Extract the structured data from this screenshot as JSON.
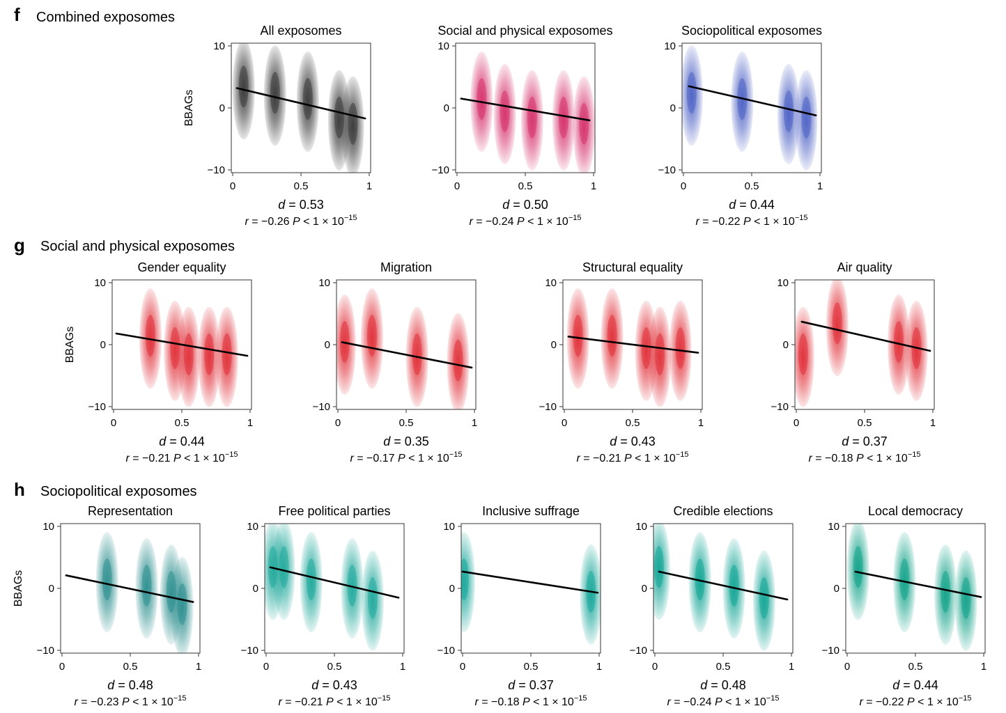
{
  "sections": [
    {
      "letter": "f",
      "title": "Combined exposomes"
    },
    {
      "letter": "g",
      "title": "Social and physical exposomes"
    },
    {
      "letter": "h",
      "title": "Sociopolitical exposomes"
    }
  ],
  "chart_data": [
    {
      "type": "scatter",
      "section": "f",
      "title": "All exposomes",
      "ylabel": "BBAGs",
      "palette": "#3a3a3a",
      "xlim": [
        0,
        1
      ],
      "ylim": [
        -10,
        10
      ],
      "x_ticks": [
        "0",
        "0.5",
        "1"
      ],
      "y_ticks": [
        "10",
        "0",
        "−10"
      ],
      "regression": {
        "x": [
          0.03,
          0.97
        ],
        "y": [
          3.2,
          -1.7
        ]
      },
      "density_clusters": [
        {
          "x": 0.08,
          "y": 3
        },
        {
          "x": 0.31,
          "y": 2
        },
        {
          "x": 0.55,
          "y": 1
        },
        {
          "x": 0.78,
          "y": -2
        },
        {
          "x": 0.88,
          "y": -3
        }
      ],
      "stats": {
        "d_label": "d",
        "d_value": "= 0.53",
        "r_label": "r",
        "r_value": "= −0.26",
        "p_label": "P",
        "p_value": "< 1 × 10",
        "p_exp": "−15"
      }
    },
    {
      "type": "scatter",
      "section": "f",
      "title": "Social and physical exposomes",
      "ylabel": "",
      "palette": "#d6336c",
      "xlim": [
        0,
        1
      ],
      "ylim": [
        -10,
        10
      ],
      "x_ticks": [
        "0",
        "0.5",
        "1"
      ],
      "y_ticks": [
        "10",
        "0",
        "−10"
      ],
      "regression": {
        "x": [
          0.03,
          0.97
        ],
        "y": [
          1.5,
          -2.0
        ]
      },
      "density_clusters": [
        {
          "x": 0.18,
          "y": 1
        },
        {
          "x": 0.35,
          "y": -1
        },
        {
          "x": 0.55,
          "y": -2
        },
        {
          "x": 0.78,
          "y": -2
        },
        {
          "x": 0.93,
          "y": -3
        }
      ],
      "stats": {
        "d_label": "d",
        "d_value": "= 0.50",
        "r_label": "r",
        "r_value": "= −0.24",
        "p_label": "P",
        "p_value": "< 1 × 10",
        "p_exp": "−15"
      }
    },
    {
      "type": "scatter",
      "section": "f",
      "title": "Sociopolitical exposomes",
      "ylabel": "",
      "palette": "#4f63c4",
      "xlim": [
        0,
        1
      ],
      "ylim": [
        -10,
        10
      ],
      "x_ticks": [
        "0",
        "0.5",
        "1"
      ],
      "y_ticks": [
        "10",
        "0",
        "−10"
      ],
      "regression": {
        "x": [
          0.04,
          0.97
        ],
        "y": [
          3.5,
          -1.2
        ]
      },
      "density_clusters": [
        {
          "x": 0.06,
          "y": 2
        },
        {
          "x": 0.43,
          "y": 1
        },
        {
          "x": 0.77,
          "y": -1
        },
        {
          "x": 0.9,
          "y": -2
        }
      ],
      "stats": {
        "d_label": "d",
        "d_value": "= 0.44",
        "r_label": "r",
        "r_value": "= −0.22",
        "p_label": "P",
        "p_value": "< 1 × 10",
        "p_exp": "−15"
      }
    },
    {
      "type": "scatter",
      "section": "g",
      "title": "Gender equality",
      "ylabel": "BBAGs",
      "palette": "#e0313a",
      "xlim": [
        0,
        1
      ],
      "ylim": [
        -10,
        10
      ],
      "x_ticks": [
        "0",
        "0.5",
        "1"
      ],
      "y_ticks": [
        "10",
        "0",
        "−10"
      ],
      "regression": {
        "x": [
          0.02,
          0.98
        ],
        "y": [
          1.8,
          -1.8
        ]
      },
      "density_clusters": [
        {
          "x": 0.27,
          "y": 1
        },
        {
          "x": 0.45,
          "y": -1
        },
        {
          "x": 0.55,
          "y": -2
        },
        {
          "x": 0.7,
          "y": -2
        },
        {
          "x": 0.83,
          "y": -2
        }
      ],
      "stats": {
        "d_label": "d",
        "d_value": "= 0.44",
        "r_label": "r",
        "r_value": "= −0.21",
        "p_label": "P",
        "p_value": "< 1 × 10",
        "p_exp": "−15"
      }
    },
    {
      "type": "scatter",
      "section": "g",
      "title": "Migration",
      "ylabel": "",
      "palette": "#e0313a",
      "xlim": [
        0,
        1
      ],
      "ylim": [
        -10,
        10
      ],
      "x_ticks": [
        "0",
        "0.5",
        "1"
      ],
      "y_ticks": [
        "10",
        "0",
        "−10"
      ],
      "regression": {
        "x": [
          0.03,
          0.98
        ],
        "y": [
          0.4,
          -3.7
        ]
      },
      "density_clusters": [
        {
          "x": 0.05,
          "y": 0
        },
        {
          "x": 0.25,
          "y": 1
        },
        {
          "x": 0.58,
          "y": -2
        },
        {
          "x": 0.88,
          "y": -3
        }
      ],
      "stats": {
        "d_label": "d",
        "d_value": "= 0.35",
        "r_label": "r",
        "r_value": "= −0.17",
        "p_label": "P",
        "p_value": "< 1 × 10",
        "p_exp": "−15"
      }
    },
    {
      "type": "scatter",
      "section": "g",
      "title": "Structural equality",
      "ylabel": "",
      "palette": "#e0313a",
      "xlim": [
        0,
        1
      ],
      "ylim": [
        -10,
        10
      ],
      "x_ticks": [
        "0",
        "0.5",
        "1"
      ],
      "y_ticks": [
        "10",
        "0",
        "−10"
      ],
      "regression": {
        "x": [
          0.03,
          0.98
        ],
        "y": [
          1.3,
          -1.3
        ]
      },
      "density_clusters": [
        {
          "x": 0.1,
          "y": 1
        },
        {
          "x": 0.35,
          "y": 1
        },
        {
          "x": 0.6,
          "y": -1
        },
        {
          "x": 0.7,
          "y": -2
        },
        {
          "x": 0.85,
          "y": -1
        }
      ],
      "stats": {
        "d_label": "d",
        "d_value": "= 0.43",
        "r_label": "r",
        "r_value": "= −0.21",
        "p_label": "P",
        "p_value": "< 1 × 10",
        "p_exp": "−15"
      }
    },
    {
      "type": "scatter",
      "section": "g",
      "title": "Air quality",
      "ylabel": "",
      "palette": "#e0313a",
      "xlim": [
        0,
        1
      ],
      "ylim": [
        -10,
        10
      ],
      "x_ticks": [
        "0",
        "0.5",
        "1"
      ],
      "y_ticks": [
        "10",
        "0",
        "−10"
      ],
      "regression": {
        "x": [
          0.04,
          0.98
        ],
        "y": [
          3.7,
          -1.0
        ]
      },
      "density_clusters": [
        {
          "x": 0.05,
          "y": -2
        },
        {
          "x": 0.3,
          "y": 3
        },
        {
          "x": 0.75,
          "y": 0
        },
        {
          "x": 0.88,
          "y": -1
        }
      ],
      "stats": {
        "d_label": "d",
        "d_value": "= 0.37",
        "r_label": "r",
        "r_value": "= −0.18",
        "p_label": "P",
        "p_value": "< 1 × 10",
        "p_exp": "−15"
      }
    },
    {
      "type": "scatter",
      "section": "h",
      "title": "Representation",
      "ylabel": "BBAGs",
      "palette": "#2f8f8f",
      "xlim": [
        0,
        1
      ],
      "ylim": [
        -10,
        10
      ],
      "x_ticks": [
        "0",
        "0.5",
        "1"
      ],
      "y_ticks": [
        "10",
        "0",
        "−10"
      ],
      "regression": {
        "x": [
          0.03,
          0.96
        ],
        "y": [
          2.1,
          -2.2
        ]
      },
      "density_clusters": [
        {
          "x": 0.33,
          "y": 1
        },
        {
          "x": 0.62,
          "y": 0
        },
        {
          "x": 0.8,
          "y": -1
        },
        {
          "x": 0.88,
          "y": -3
        }
      ],
      "stats": {
        "d_label": "d",
        "d_value": "= 0.48",
        "r_label": "r",
        "r_value": "= −0.23",
        "p_label": "P",
        "p_value": "< 1 × 10",
        "p_exp": "−15"
      }
    },
    {
      "type": "scatter",
      "section": "h",
      "title": "Free political parties",
      "ylabel": "",
      "palette": "#22a99c",
      "xlim": [
        0,
        1
      ],
      "ylim": [
        -10,
        10
      ],
      "x_ticks": [
        "0",
        "0.5",
        "1"
      ],
      "y_ticks": [
        "10",
        "0",
        "−10"
      ],
      "regression": {
        "x": [
          0.03,
          0.97
        ],
        "y": [
          3.4,
          -1.5
        ]
      },
      "density_clusters": [
        {
          "x": 0.05,
          "y": 3
        },
        {
          "x": 0.13,
          "y": 3
        },
        {
          "x": 0.33,
          "y": 1
        },
        {
          "x": 0.63,
          "y": 0
        },
        {
          "x": 0.78,
          "y": -2
        }
      ],
      "stats": {
        "d_label": "d",
        "d_value": "= 0.43",
        "r_label": "r",
        "r_value": "= −0.21",
        "p_label": "P",
        "p_value": "< 1 × 10",
        "p_exp": "−15"
      }
    },
    {
      "type": "scatter",
      "section": "h",
      "title": "Inclusive suffrage",
      "ylabel": "",
      "palette": "#1aa79a",
      "xlim": [
        0,
        1
      ],
      "ylim": [
        -10,
        10
      ],
      "x_ticks": [
        "0",
        "0.5",
        "1"
      ],
      "y_ticks": [
        "10",
        "0",
        "−10"
      ],
      "regression": {
        "x": [
          0.0,
          0.99
        ],
        "y": [
          2.7,
          -0.7
        ]
      },
      "density_clusters": [
        {
          "x": 0.01,
          "y": 1
        },
        {
          "x": 0.94,
          "y": -1
        }
      ],
      "stats": {
        "d_label": "d",
        "d_value": "= 0.37",
        "r_label": "r",
        "r_value": "= −0.18",
        "p_label": "P",
        "p_value": "< 1 × 10",
        "p_exp": "−15"
      }
    },
    {
      "type": "scatter",
      "section": "h",
      "title": "Credible elections",
      "ylabel": "",
      "palette": "#14a596",
      "xlim": [
        0,
        1
      ],
      "ylim": [
        -10,
        10
      ],
      "x_ticks": [
        "0",
        "0.5",
        "1"
      ],
      "y_ticks": [
        "10",
        "0",
        "−10"
      ],
      "regression": {
        "x": [
          0.03,
          0.97
        ],
        "y": [
          2.7,
          -1.8
        ]
      },
      "density_clusters": [
        {
          "x": 0.03,
          "y": 3
        },
        {
          "x": 0.33,
          "y": 1
        },
        {
          "x": 0.58,
          "y": 0
        },
        {
          "x": 0.8,
          "y": -2
        }
      ],
      "stats": {
        "d_label": "d",
        "d_value": "= 0.48",
        "r_label": "r",
        "r_value": "= −0.24",
        "p_label": "P",
        "p_value": "< 1 × 10",
        "p_exp": "−15"
      }
    },
    {
      "type": "scatter",
      "section": "h",
      "title": "Local democracy",
      "ylabel": "",
      "palette": "#14a38a",
      "xlim": [
        0,
        1
      ],
      "ylim": [
        -10,
        10
      ],
      "x_ticks": [
        "0",
        "0.5",
        "1"
      ],
      "y_ticks": [
        "10",
        "0",
        "−10"
      ],
      "regression": {
        "x": [
          0.06,
          0.98
        ],
        "y": [
          2.7,
          -1.4
        ]
      },
      "density_clusters": [
        {
          "x": 0.08,
          "y": 3
        },
        {
          "x": 0.42,
          "y": 1
        },
        {
          "x": 0.72,
          "y": -1
        },
        {
          "x": 0.87,
          "y": -2
        }
      ],
      "stats": {
        "d_label": "d",
        "d_value": "= 0.44",
        "r_label": "r",
        "r_value": "= −0.22",
        "p_label": "P",
        "p_value": "< 1 × 10",
        "p_exp": "−15"
      }
    }
  ]
}
